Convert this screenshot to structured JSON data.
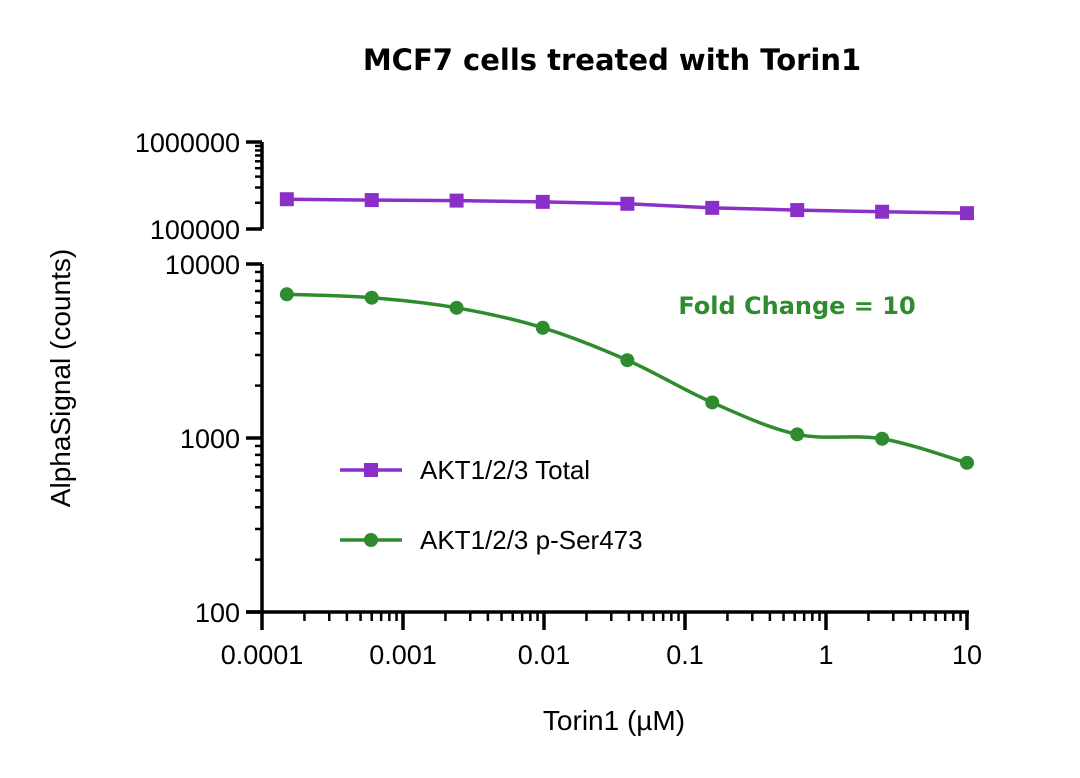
{
  "chart_data": {
    "type": "line",
    "title": "MCF7 cells treated with Torin1",
    "xlabel": "Torin1 (µM)",
    "ylabel": "AlphaSignal (counts)",
    "x_scale": "log",
    "y_scale": "log (broken axis)",
    "xlim": [
      0.0001,
      10
    ],
    "x_ticks": [
      {
        "value": 0.0001,
        "label": "0.0001"
      },
      {
        "value": 0.001,
        "label": "0.001"
      },
      {
        "value": 0.01,
        "label": "0.01"
      },
      {
        "value": 0.1,
        "label": "0.1"
      },
      {
        "value": 1,
        "label": "1"
      },
      {
        "value": 10,
        "label": "10"
      }
    ],
    "y_segments": [
      {
        "range": [
          100000,
          1000000
        ],
        "ticks": [
          {
            "value": 100000,
            "label": "100000"
          },
          {
            "value": 1000000,
            "label": "1000000"
          }
        ]
      },
      {
        "range": [
          100,
          10000
        ],
        "ticks": [
          {
            "value": 100,
            "label": "100"
          },
          {
            "value": 1000,
            "label": "1000"
          },
          {
            "value": 10000,
            "label": "10000"
          }
        ]
      }
    ],
    "series": [
      {
        "name": "AKT1/2/3 Total",
        "color": "#8b2fc9",
        "marker": "square",
        "x": [
          0.00015,
          0.0006,
          0.0024,
          0.0098,
          0.039,
          0.156,
          0.625,
          2.5,
          10
        ],
        "y": [
          220000,
          215000,
          212000,
          205000,
          195000,
          175000,
          165000,
          158000,
          152000
        ]
      },
      {
        "name": "AKT1/2/3 p-Ser473",
        "color": "#2e8b2e",
        "marker": "circle",
        "x": [
          0.00015,
          0.0006,
          0.0024,
          0.0098,
          0.039,
          0.156,
          0.625,
          2.5,
          10
        ],
        "y": [
          6700,
          6400,
          5600,
          4300,
          2800,
          1600,
          1050,
          990,
          720
        ]
      }
    ],
    "legend": {
      "position": "bottom-left"
    },
    "annotation": {
      "text": "Fold Change = 10",
      "color": "#2e8b2e"
    },
    "grid": false
  }
}
